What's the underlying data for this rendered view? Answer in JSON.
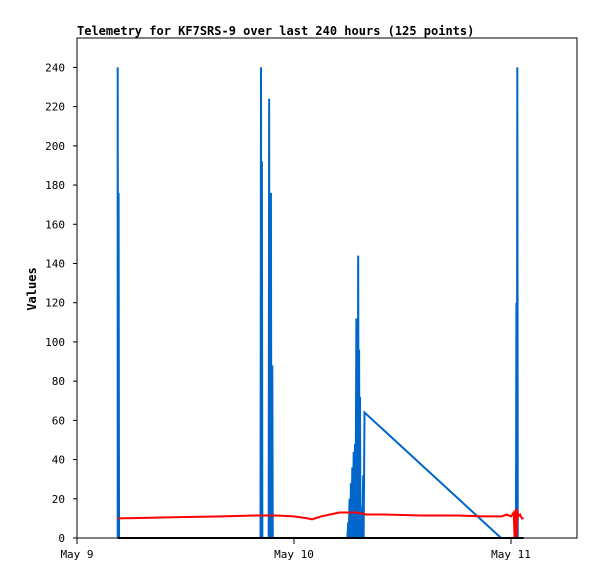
{
  "chart_data": {
    "type": "line",
    "title": "Telemetry for KF7SRS-9 over last 240 hours (125 points)",
    "xlabel": "",
    "ylabel": "Values",
    "x_tick_labels": [
      "May 9",
      "May 10",
      "May 11"
    ],
    "x_tick_values": [
      0,
      24,
      48
    ],
    "ylim": [
      0,
      255
    ],
    "y_ticks": [
      0,
      20,
      40,
      60,
      80,
      100,
      120,
      140,
      160,
      180,
      200,
      220,
      240
    ],
    "xlim": [
      0,
      55.3
    ],
    "grid": false,
    "legend": "none",
    "colors": {
      "blue": "#0066cc",
      "red": "#ff0000",
      "black": "#000000"
    },
    "series": [
      {
        "color": "#0066cc",
        "points": [
          [
            4.5,
            0
          ],
          [
            4.5,
            240
          ],
          [
            4.55,
            0
          ],
          [
            4.6,
            176
          ],
          [
            4.65,
            0
          ],
          [
            20.3,
            0
          ],
          [
            20.3,
            14
          ],
          [
            20.35,
            240
          ],
          [
            20.4,
            0
          ],
          [
            20.45,
            192
          ],
          [
            20.5,
            0
          ],
          [
            21.2,
            0
          ],
          [
            21.25,
            224
          ],
          [
            21.3,
            0
          ],
          [
            21.45,
            176
          ],
          [
            21.5,
            0
          ],
          [
            21.6,
            88
          ],
          [
            21.65,
            0
          ],
          [
            29.9,
            0
          ],
          [
            30.0,
            8
          ],
          [
            30.05,
            0
          ],
          [
            30.15,
            20
          ],
          [
            30.2,
            0
          ],
          [
            30.3,
            28
          ],
          [
            30.35,
            0
          ],
          [
            30.45,
            36
          ],
          [
            30.5,
            0
          ],
          [
            30.6,
            44
          ],
          [
            30.65,
            0
          ],
          [
            30.75,
            48
          ],
          [
            30.8,
            0
          ],
          [
            30.9,
            112
          ],
          [
            30.95,
            0
          ],
          [
            31.0,
            94
          ],
          [
            31.05,
            0
          ],
          [
            31.1,
            144
          ],
          [
            31.15,
            0
          ],
          [
            31.2,
            96
          ],
          [
            31.25,
            0
          ],
          [
            31.3,
            72
          ],
          [
            31.35,
            0
          ],
          [
            31.5,
            16
          ],
          [
            31.55,
            0
          ],
          [
            31.65,
            32
          ],
          [
            31.7,
            0
          ],
          [
            31.8,
            64
          ],
          [
            46.9,
            0
          ],
          [
            48.55,
            0
          ],
          [
            48.6,
            120
          ],
          [
            48.65,
            0
          ],
          [
            48.7,
            240
          ],
          [
            48.75,
            0
          ]
        ]
      },
      {
        "color": "#ff0000",
        "points": [
          [
            4.5,
            10
          ],
          [
            10.0,
            10.5
          ],
          [
            16.0,
            11
          ],
          [
            20.0,
            11.5
          ],
          [
            22.0,
            11.5
          ],
          [
            24.0,
            11
          ],
          [
            25.5,
            10
          ],
          [
            26.0,
            9.5
          ],
          [
            27.0,
            11
          ],
          [
            28.0,
            12
          ],
          [
            29.0,
            13
          ],
          [
            31.0,
            13
          ],
          [
            32.0,
            12
          ],
          [
            34.0,
            12
          ],
          [
            38.0,
            11.5
          ],
          [
            42.0,
            11.5
          ],
          [
            45.0,
            11
          ],
          [
            47.0,
            11
          ],
          [
            47.5,
            12
          ],
          [
            48.0,
            11
          ],
          [
            48.3,
            13
          ],
          [
            48.4,
            0
          ],
          [
            48.45,
            13
          ],
          [
            48.5,
            0
          ],
          [
            48.55,
            15
          ],
          [
            48.6,
            0
          ],
          [
            48.7,
            14
          ],
          [
            48.8,
            11
          ],
          [
            49.0,
            12
          ],
          [
            49.2,
            10
          ],
          [
            49.4,
            10
          ]
        ]
      },
      {
        "color": "#000000",
        "points": [
          [
            4.5,
            0
          ],
          [
            49.4,
            0
          ]
        ]
      }
    ]
  }
}
